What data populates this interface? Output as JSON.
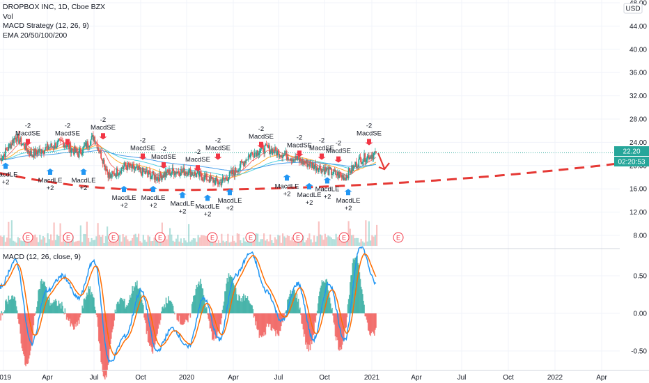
{
  "legend": {
    "symbol": "DROPBOX INC, 1D, Cboe BZX",
    "vol": "Vol",
    "strategy": "MACD Strategy (12, 26, 9)",
    "ema": "EMA 20/50/100/200"
  },
  "macd_legend": "MACD (12, 26, close, 9)",
  "currency": "USD",
  "price_label": "22.20",
  "countdown_label": "02:20:53",
  "colors": {
    "up": "#26a69a",
    "down": "#ef5350",
    "macd_line": "#2196f3",
    "signal_line": "#ff6d00",
    "trend": "#e53935",
    "buy_arrow": "#2196f3",
    "sell_arrow": "#f23645",
    "earnings": "#f23645"
  },
  "chart_data": [
    {
      "type": "line",
      "title": "DROPBOX INC, 1D, Cboe BZX",
      "price_axis_ticks": [
        "48.00",
        "44.00",
        "40.00",
        "36.00",
        "32.00",
        "28.00",
        "24.00",
        "20.00",
        "16.00",
        "12.00",
        "8.00"
      ],
      "time_axis_ticks": [
        "2019",
        "Apr",
        "Jul",
        "Oct",
        "2020",
        "Apr",
        "Jul",
        "Oct",
        "2021",
        "Apr",
        "Jul",
        "Oct",
        "2022",
        "Apr"
      ],
      "x": [
        "2019-01",
        "2019-02",
        "2019-03",
        "2019-04",
        "2019-05",
        "2019-06",
        "2019-07",
        "2019-08",
        "2019-09",
        "2019-10",
        "2019-11",
        "2019-12",
        "2020-01",
        "2020-02",
        "2020-03",
        "2020-04",
        "2020-05",
        "2020-06",
        "2020-07",
        "2020-08",
        "2020-09",
        "2020-10",
        "2020-11",
        "2020-12",
        "2021-01"
      ],
      "series": [
        {
          "name": "DROPBOX INC",
          "values": [
            21,
            25,
            22,
            23,
            24,
            22,
            25,
            18,
            20,
            19,
            18,
            19,
            19,
            18,
            17,
            19,
            22,
            23,
            22,
            21,
            20,
            19,
            18,
            21,
            22.2
          ]
        }
      ],
      "signal_labels": {
        "sell": "MacdSE",
        "sell_qty": "-2",
        "buy": "MacdLE",
        "buy_qty": "+2"
      },
      "earnings_label": "E",
      "trend_line": "parabolic support (dashed)"
    },
    {
      "type": "bar",
      "title": "MACD (12, 26, close, 9)",
      "axis_ticks": [
        "0.50",
        "0.00",
        "-0.50"
      ],
      "series": [
        {
          "name": "MACD",
          "values": [
            0.35,
            0.7,
            -0.4,
            0.3,
            0.5,
            0.2,
            0.7,
            -0.65,
            -0.3,
            0.3,
            -0.5,
            -0.2,
            -0.45,
            0.2,
            -0.35,
            0.5,
            0.8,
            0.3,
            -0.1,
            0.4,
            -0.35,
            0.4,
            -0.35,
            0.9,
            0.4
          ]
        }
      ]
    }
  ]
}
